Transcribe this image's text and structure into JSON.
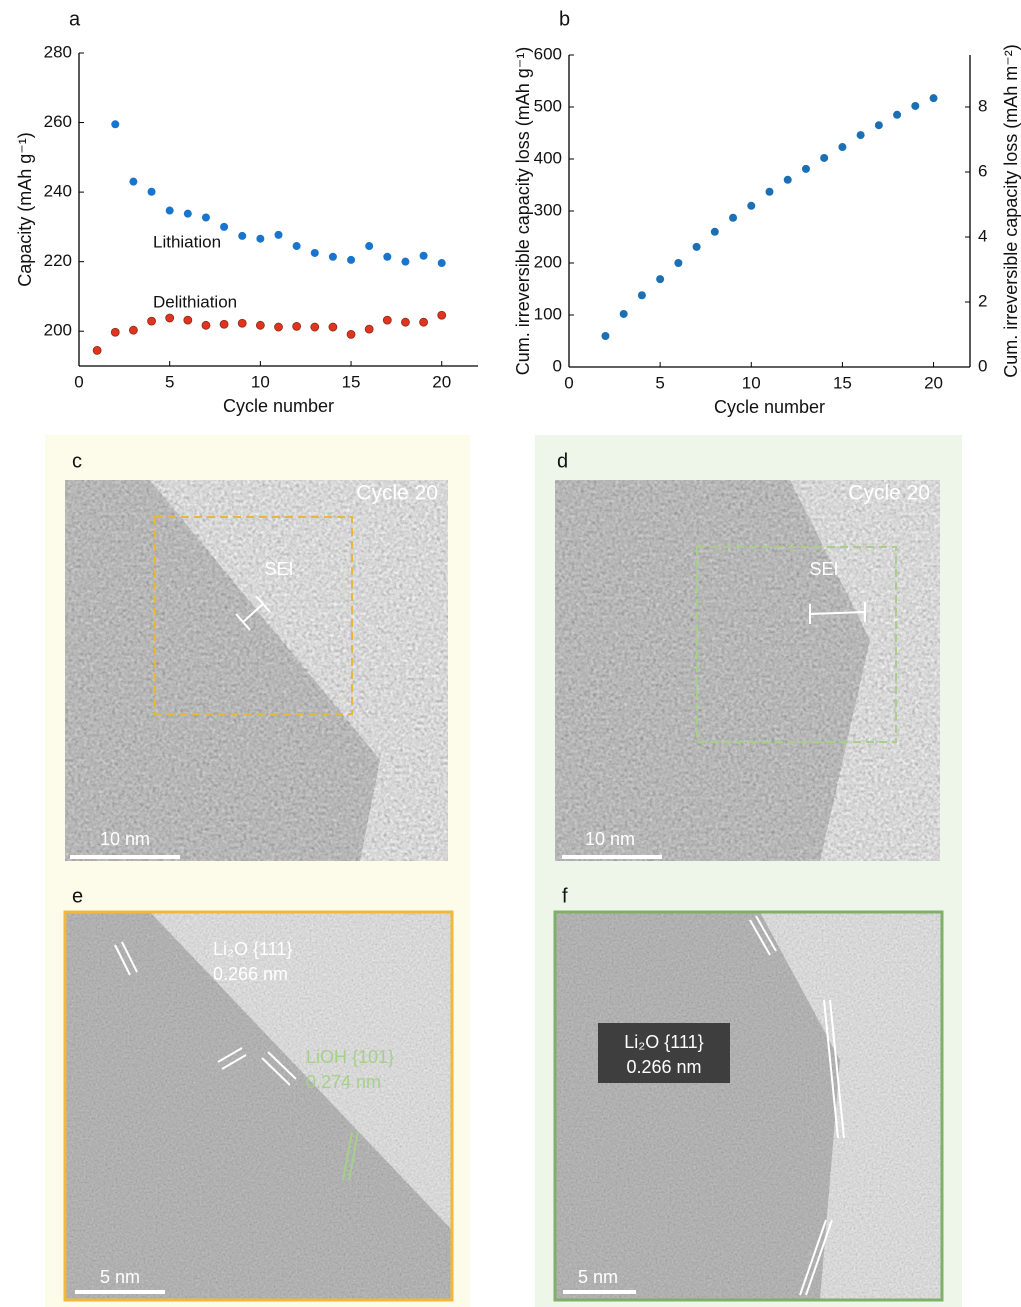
{
  "chart_data": [
    {
      "type": "scatter",
      "panel_label": "a",
      "xlabel": "Cycle number",
      "ylabel": "Capacity (mAh g⁻¹)",
      "xlim": [
        0,
        22
      ],
      "ylim": [
        190,
        280
      ],
      "xticks": [
        0,
        5,
        10,
        15,
        20
      ],
      "yticks": [
        200,
        220,
        240,
        260,
        280
      ],
      "series": [
        {
          "name": "Lithiation",
          "color": "#1874cd",
          "x": [
            2,
            3,
            4,
            5,
            6,
            7,
            8,
            9,
            10,
            11,
            12,
            13,
            14,
            15,
            16,
            17,
            18,
            19,
            20
          ],
          "values": [
            259.5,
            243,
            240.1,
            234.7,
            233.8,
            232.7,
            230,
            227.4,
            226.6,
            227.7,
            224.5,
            222.5,
            221.4,
            220.5,
            224.5,
            221.4,
            220,
            221.7,
            219.6
          ]
        },
        {
          "name": "Delithiation",
          "color": "#e0341e",
          "x": [
            1,
            2,
            3,
            4,
            5,
            6,
            7,
            8,
            9,
            10,
            11,
            12,
            13,
            14,
            15,
            16,
            17,
            18,
            19,
            20
          ],
          "values": [
            194.5,
            199.7,
            200.3,
            202.9,
            203.8,
            203.2,
            201.7,
            202,
            202.3,
            201.7,
            201.2,
            201.4,
            201.2,
            201.2,
            199.1,
            200.6,
            203.2,
            202.6,
            202.6,
            204.6
          ]
        }
      ]
    },
    {
      "type": "scatter",
      "panel_label": "b",
      "xlabel": "Cycle number",
      "ylabel": "Cum. irreversible capacity loss (mAh g⁻¹)",
      "y2label": "Cum. irreversible capacity loss (mAh m⁻²)",
      "xlim": [
        0,
        22
      ],
      "ylim": [
        0,
        600
      ],
      "y2lim": [
        0,
        9.6
      ],
      "xticks": [
        0,
        5,
        10,
        15,
        20
      ],
      "yticks": [
        0,
        100,
        200,
        300,
        400,
        500,
        600
      ],
      "y2ticks": [
        0,
        2,
        4,
        6,
        8
      ],
      "series": [
        {
          "color": "#1a6fb5",
          "x": [
            2,
            3,
            4,
            5,
            6,
            7,
            8,
            9,
            10,
            11,
            12,
            13,
            14,
            15,
            16,
            17,
            18,
            19,
            20
          ],
          "values": [
            59.6,
            102,
            138,
            169,
            200,
            231,
            260,
            287,
            310,
            337,
            360,
            381,
            402,
            423,
            446,
            465,
            485,
            502,
            517
          ]
        }
      ]
    }
  ],
  "panels": [
    {
      "label": "c",
      "caption": "Cycle 20",
      "region": "SEI",
      "scale_bar": "10 nm"
    },
    {
      "label": "d",
      "caption": "Cycle 20",
      "region": "SEI",
      "scale_bar": "10 nm"
    },
    {
      "label": "e",
      "annotations": [
        "Li₂O {111}",
        "0.266 nm",
        "LiOH {101}",
        "0.274 nm"
      ],
      "scale_bar": "5 nm"
    },
    {
      "label": "f",
      "annotations": [
        "Li₂O {111}",
        "0.266 nm"
      ],
      "scale_bar": "5 nm"
    }
  ]
}
